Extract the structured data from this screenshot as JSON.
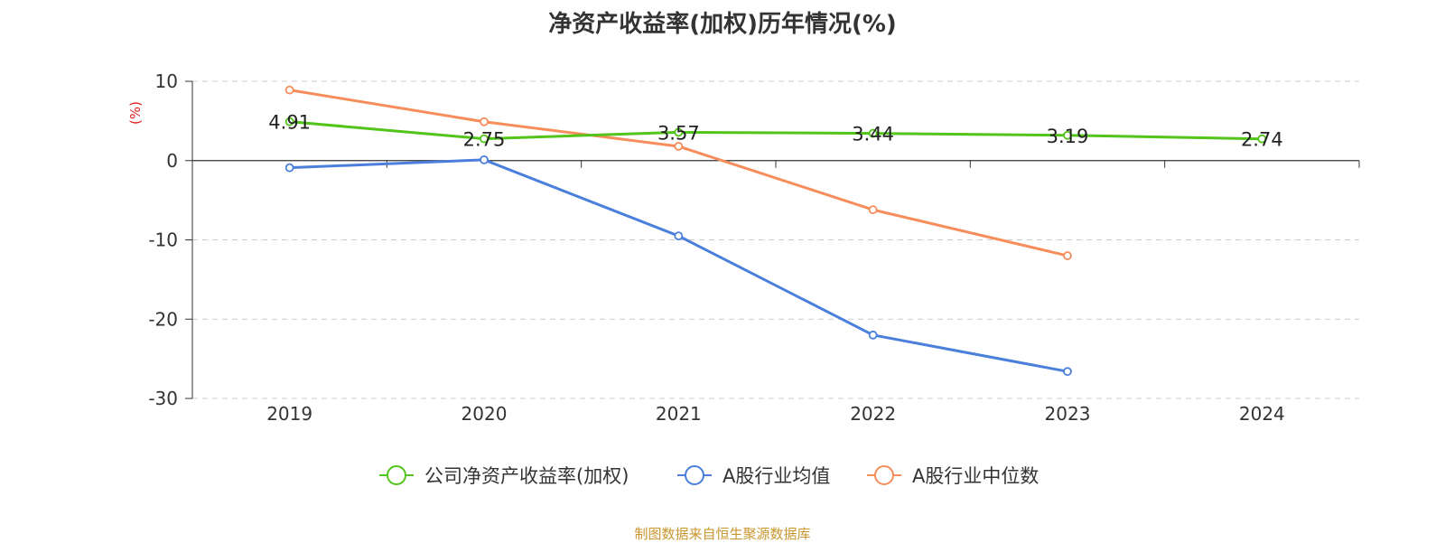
{
  "chart_data": {
    "type": "line",
    "title": "净资产收益率(加权)历年情况(%)",
    "ylabel": "(%)",
    "xlabel": "",
    "categories": [
      "2019",
      "2020",
      "2021",
      "2022",
      "2023",
      "2024"
    ],
    "yticks": [
      "10",
      "0",
      "-10",
      "-20",
      "-30"
    ],
    "ylim": [
      -30,
      10
    ],
    "grid": true,
    "legend_position": "bottom",
    "series": [
      {
        "name": "公司净资产收益率(加权)",
        "color": "#52c41a",
        "values": [
          4.91,
          2.75,
          3.57,
          3.44,
          3.19,
          2.74
        ],
        "labels": [
          "4.91",
          "2.75",
          "3.57",
          "3.44",
          "3.19",
          "2.74"
        ]
      },
      {
        "name": "A股行业均值",
        "color": "#4a7fdc",
        "values": [
          -0.9,
          0.1,
          -9.5,
          -22.0,
          -26.6,
          null
        ]
      },
      {
        "name": "A股行业中位数",
        "color": "#f78d5a",
        "values": [
          8.9,
          4.9,
          1.8,
          -6.2,
          -12.0,
          null
        ]
      }
    ]
  },
  "footer": {
    "source": "制图数据来自恒生聚源数据库"
  }
}
